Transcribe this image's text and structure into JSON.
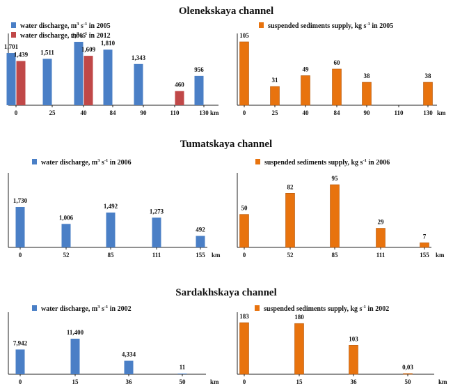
{
  "chart_data": [
    {
      "type": "bar",
      "section": "Olenekskaya channel",
      "legend": [
        {
          "before": "water discharge, m",
          "sup1": "3",
          "mid": " s",
          "sup2": "-1",
          "after": " in 2005",
          "color": "#4a7fc6"
        },
        {
          "before": "water discharge, m",
          "sup1": "3",
          "mid": " s",
          "sup2": "-1",
          "after": " in 2012",
          "color": "#c04848"
        }
      ],
      "categories": [
        "0",
        "25",
        "40",
        "84",
        "90",
        "110",
        "130"
      ],
      "xunit": "km",
      "ylim": [
        0,
        2065
      ],
      "series": [
        {
          "name": "2005",
          "values": [
            1701,
            1511,
            2065,
            1810,
            1343,
            null,
            956
          ],
          "labels": [
            "1,701",
            "1,511",
            "2,065",
            "1,810",
            "1,343",
            "",
            "956"
          ],
          "color": "#4a7fc6"
        },
        {
          "name": "2012",
          "values": [
            1439,
            null,
            1609,
            null,
            null,
            460,
            null
          ],
          "labels": [
            "1,439",
            "",
            "1,609",
            "",
            "",
            "460",
            ""
          ],
          "color": "#c04848"
        }
      ]
    },
    {
      "type": "bar",
      "section": "Olenekskaya channel",
      "legend": [
        {
          "before": "suspended sediments supply, kg s",
          "sup1": "-1",
          "mid": "",
          "sup2": "",
          "after": " in 2005",
          "color": "#e8730e"
        }
      ],
      "categories": [
        "0",
        "25",
        "40",
        "84",
        "90",
        "110",
        "130"
      ],
      "xunit": "km",
      "ylim": [
        0,
        105
      ],
      "series": [
        {
          "name": "2005",
          "values": [
            105,
            31,
            49,
            60,
            38,
            null,
            38
          ],
          "labels": [
            "105",
            "31",
            "49",
            "60",
            "38",
            "",
            "38"
          ],
          "color": "#e8730e"
        }
      ]
    },
    {
      "type": "bar",
      "section": "Tumatskaya channel",
      "legend": [
        {
          "before": "water discharge, m",
          "sup1": "3",
          "mid": " s",
          "sup2": "-1",
          "after": " in 2006",
          "color": "#4a7fc6"
        }
      ],
      "categories": [
        "0",
        "52",
        "85",
        "111",
        "155"
      ],
      "xunit": "km",
      "ylim": [
        0,
        1730
      ],
      "series": [
        {
          "name": "2006",
          "values": [
            1730,
            1006,
            1492,
            1273,
            492
          ],
          "labels": [
            "1,730",
            "1,006",
            "1,492",
            "1,273",
            "492"
          ],
          "color": "#4a7fc6"
        }
      ]
    },
    {
      "type": "bar",
      "section": "Tumatskaya channel",
      "legend": [
        {
          "before": "suspended sediments supply, kg s",
          "sup1": "-1",
          "mid": "",
          "sup2": "",
          "after": " in 2006",
          "color": "#e8730e"
        }
      ],
      "categories": [
        "0",
        "52",
        "85",
        "111",
        "155"
      ],
      "xunit": "km",
      "ylim": [
        0,
        95
      ],
      "series": [
        {
          "name": "2006",
          "values": [
            50,
            82,
            95,
            29,
            7
          ],
          "labels": [
            "50",
            "82",
            "95",
            "29",
            "7"
          ],
          "color": "#e8730e"
        }
      ]
    },
    {
      "type": "bar",
      "section": "Sardakhskaya channel",
      "legend": [
        {
          "before": "water discharge, m",
          "sup1": "3",
          "mid": " s",
          "sup2": "-1",
          "after": " in 2002",
          "color": "#4a7fc6"
        }
      ],
      "categories": [
        "0",
        "15",
        "36",
        "50"
      ],
      "xunit": "km",
      "ylim": [
        0,
        11400
      ],
      "series": [
        {
          "name": "2002",
          "values": [
            7942,
            11400,
            4334,
            11
          ],
          "labels": [
            "7,942",
            "11,400",
            "4,334",
            "11"
          ],
          "color": "#4a7fc6"
        }
      ]
    },
    {
      "type": "bar",
      "section": "Sardakhskaya channel",
      "legend": [
        {
          "before": "suspended sediments supply, kg s",
          "sup1": "-1",
          "mid": "",
          "sup2": "",
          "after": " in 2002",
          "color": "#e8730e"
        }
      ],
      "categories": [
        "0",
        "15",
        "36",
        "50"
      ],
      "xunit": "km",
      "ylim": [
        0,
        183
      ],
      "series": [
        {
          "name": "2002",
          "values": [
            183,
            180,
            103,
            0.03
          ],
          "labels": [
            "183",
            "180",
            "103",
            "0,03"
          ],
          "color": "#e8730e"
        }
      ]
    }
  ]
}
